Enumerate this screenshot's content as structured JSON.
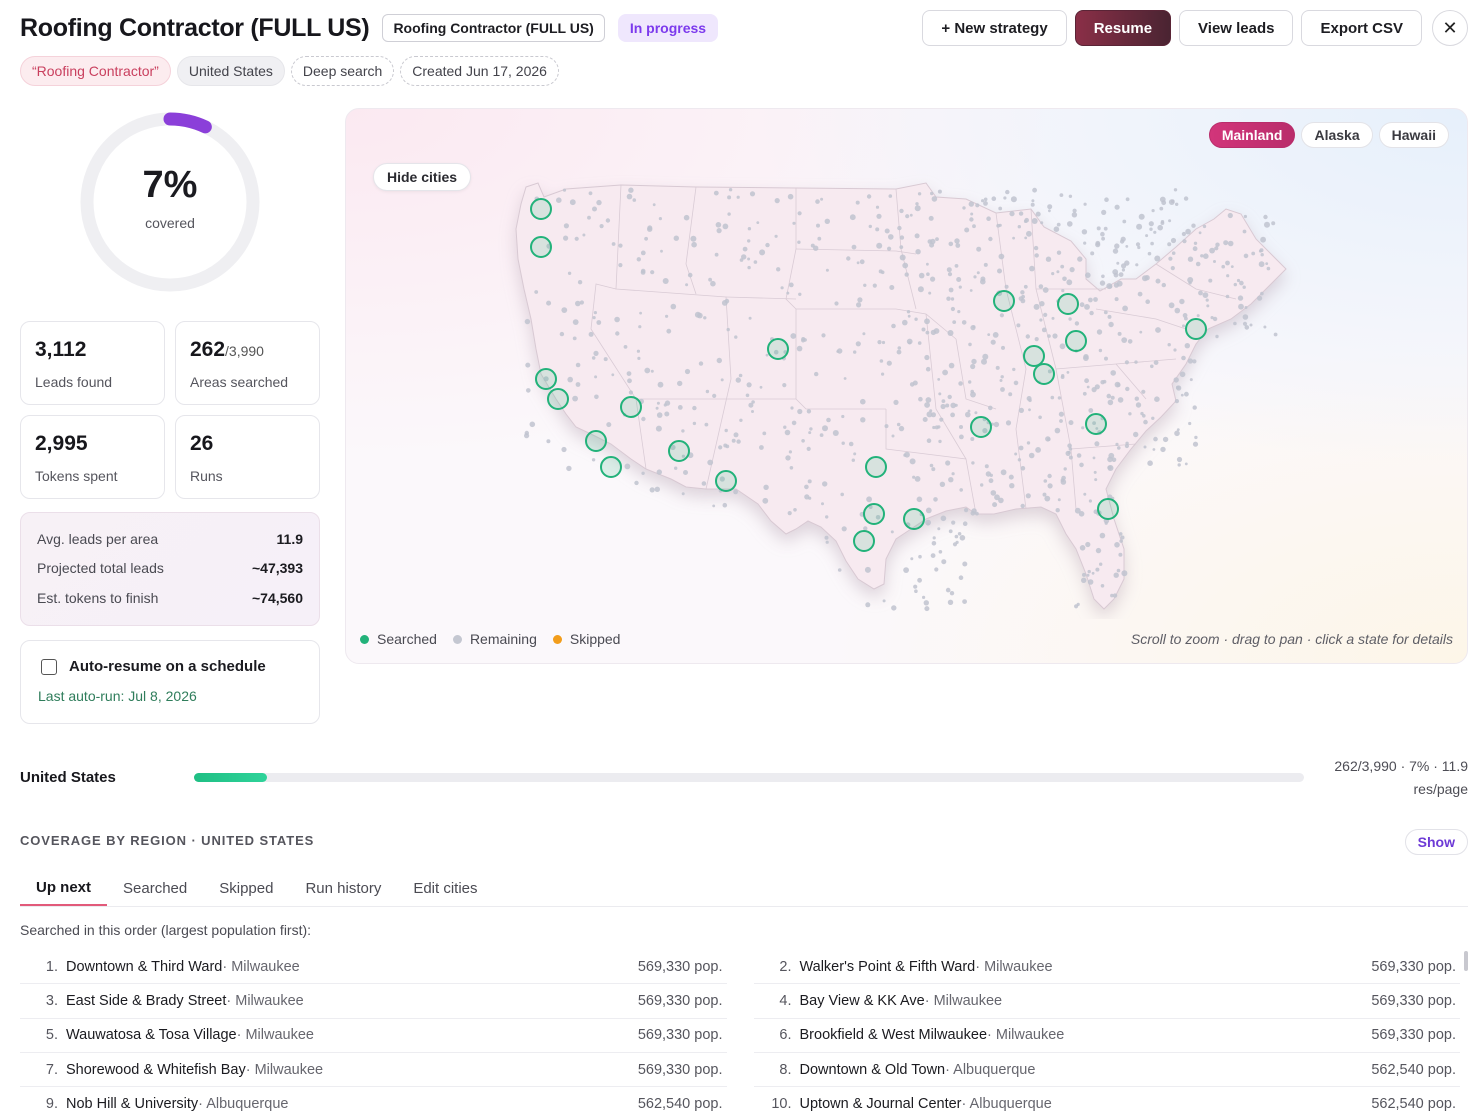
{
  "header": {
    "title": "Roofing Contractor (FULL US)",
    "strategy_tag": "Roofing Contractor (FULL US)",
    "status": "In progress",
    "actions": {
      "new_strategy": "+ New strategy",
      "resume": "Resume",
      "view_leads": "View leads",
      "export_csv": "Export CSV",
      "close": "✕"
    }
  },
  "chips": {
    "keyword": "“Roofing Contractor”",
    "country": "United States",
    "mode": "Deep search",
    "created": "Created Jun 17, 2026"
  },
  "coverage": {
    "percent_label": "7%",
    "percent_value": 0.07,
    "label": "covered",
    "ring_color": "#8b3fd9"
  },
  "stats": {
    "leads_found": {
      "value": "3,112",
      "label": "Leads found"
    },
    "areas_searched": {
      "value": "262",
      "total": "/3,990",
      "label": "Areas searched"
    },
    "tokens_spent": {
      "value": "2,995",
      "label": "Tokens spent"
    },
    "runs": {
      "value": "26",
      "label": "Runs"
    }
  },
  "projections": [
    {
      "label": "Avg. leads per area",
      "value": "11.9"
    },
    {
      "label": "Projected total leads",
      "value": "~47,393"
    },
    {
      "label": "Est. tokens to finish",
      "value": "~74,560"
    }
  ],
  "auto_resume": {
    "label": "Auto-resume on a schedule",
    "checked": false,
    "last_run": "Last auto-run: Jul 8, 2026"
  },
  "map": {
    "hide_cities": "Hide cities",
    "regions": [
      "Mainland",
      "Alaska",
      "Hawaii"
    ],
    "active_region": "Mainland",
    "legend": [
      {
        "label": "Searched",
        "color": "#22b27a"
      },
      {
        "label": "Remaining",
        "color": "#c4c7d1"
      },
      {
        "label": "Skipped",
        "color": "#f29d1b"
      }
    ],
    "hint": "Scroll to zoom · drag to pan · click a state for details"
  },
  "country_progress": {
    "country": "United States",
    "fraction": 0.0657,
    "meta": "262/3,990 · 7% · 11.9 res/page"
  },
  "coverage_section": {
    "title": "COVERAGE BY REGION · UNITED STATES",
    "show": "Show",
    "tabs": [
      "Up next",
      "Searched",
      "Skipped",
      "Run history",
      "Edit cities"
    ],
    "active_tab": "Up next",
    "note": "Searched in this order (largest population first):",
    "items": [
      {
        "num": "1.",
        "area": "Downtown & Third Ward",
        "city": " · Milwaukee",
        "pop": "569,330 pop."
      },
      {
        "num": "2.",
        "area": "Walker's Point & Fifth Ward",
        "city": " · Milwaukee",
        "pop": "569,330 pop."
      },
      {
        "num": "3.",
        "area": "East Side & Brady Street",
        "city": " · Milwaukee",
        "pop": "569,330 pop."
      },
      {
        "num": "4.",
        "area": "Bay View & KK Ave",
        "city": " · Milwaukee",
        "pop": "569,330 pop."
      },
      {
        "num": "5.",
        "area": "Wauwatosa & Tosa Village",
        "city": " · Milwaukee",
        "pop": "569,330 pop."
      },
      {
        "num": "6.",
        "area": "Brookfield & West Milwaukee",
        "city": " · Milwaukee",
        "pop": "569,330 pop."
      },
      {
        "num": "7.",
        "area": "Shorewood & Whitefish Bay",
        "city": " · Milwaukee",
        "pop": "569,330 pop."
      },
      {
        "num": "8.",
        "area": "Downtown & Old Town",
        "city": " · Albuquerque",
        "pop": "562,540 pop."
      },
      {
        "num": "9.",
        "area": "Nob Hill & University",
        "city": " · Albuquerque",
        "pop": "562,540 pop."
      },
      {
        "num": "10.",
        "area": "Uptown & Journal Center",
        "city": " · Albuquerque",
        "pop": "562,540 pop."
      }
    ]
  }
}
